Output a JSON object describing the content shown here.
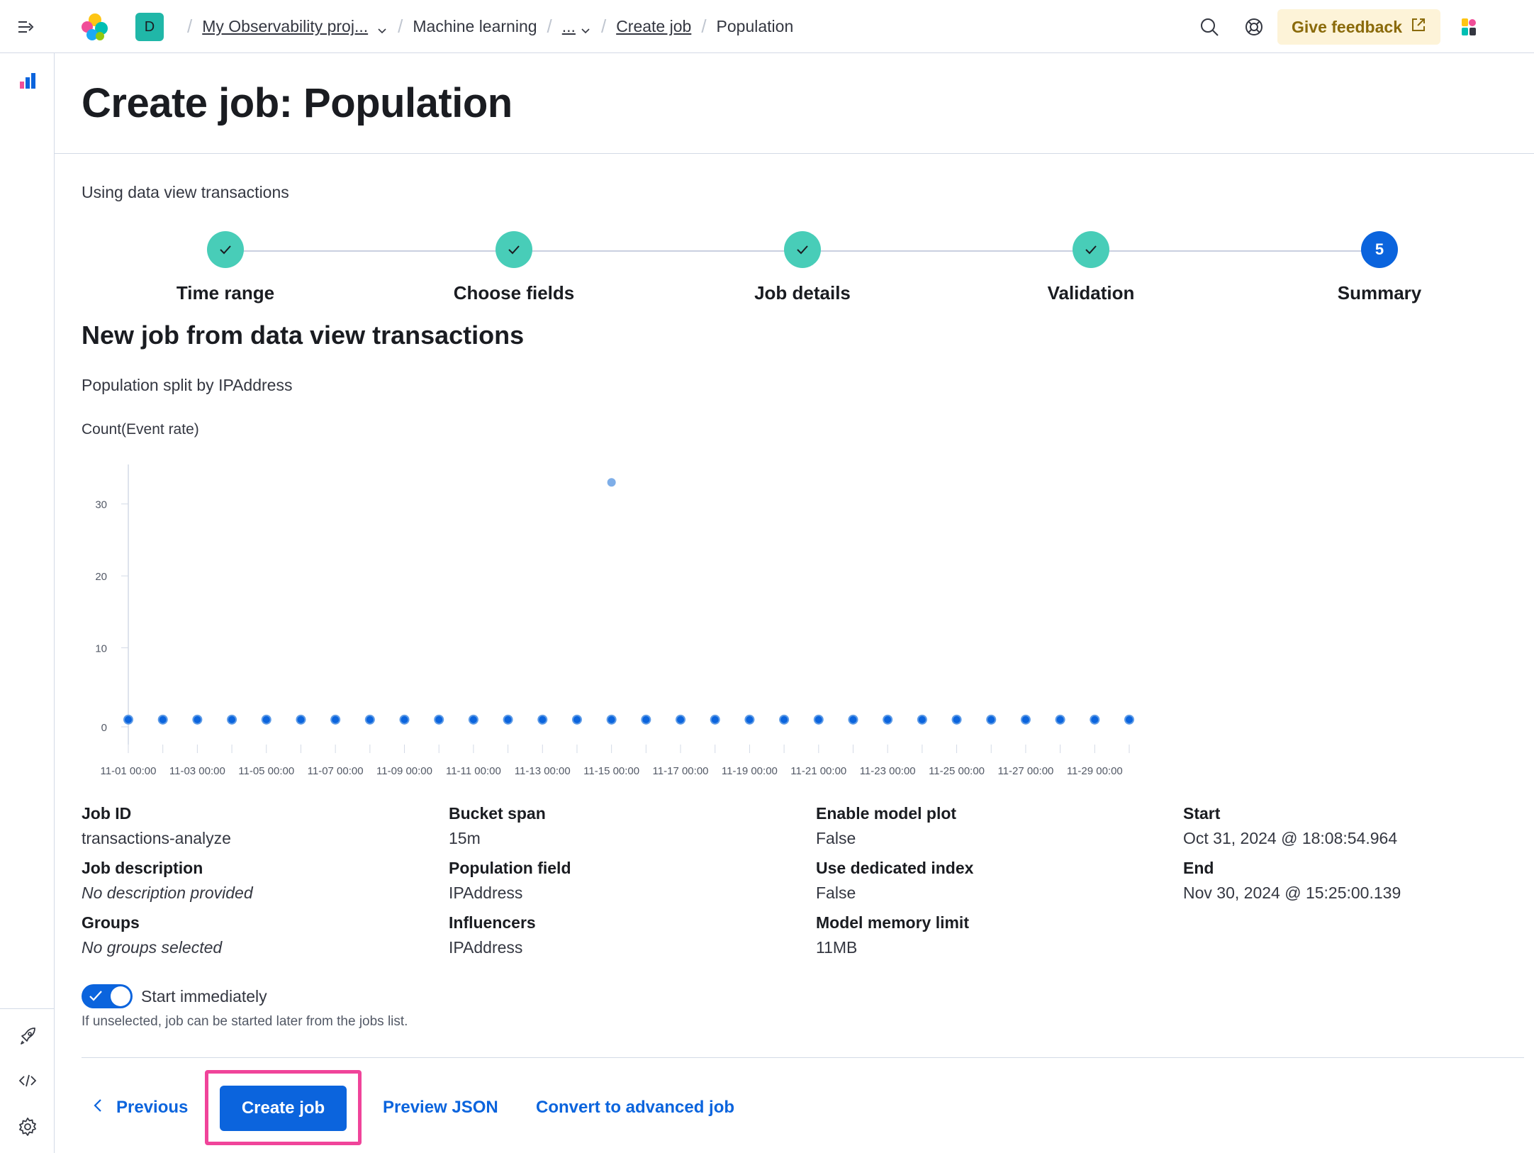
{
  "header": {
    "project_initial": "D",
    "breadcrumbs": {
      "project": "My Observability proj...",
      "ml": "Machine learning",
      "ellipsis": "...",
      "create_job": "Create job",
      "current": "Population"
    },
    "feedback_label": "Give feedback"
  },
  "page": {
    "title": "Create job: Population",
    "subtitle": "Using data view transactions"
  },
  "steps": [
    {
      "label": "Time range",
      "status": "complete"
    },
    {
      "label": "Choose fields",
      "status": "complete"
    },
    {
      "label": "Job details",
      "status": "complete"
    },
    {
      "label": "Validation",
      "status": "complete"
    },
    {
      "label": "Summary",
      "status": "current",
      "number": "5"
    }
  ],
  "summary_section": {
    "title": "New job from data view transactions",
    "split_text": "Population split by IPAddress",
    "chart_title": "Count(Event rate)"
  },
  "chart_data": {
    "type": "scatter",
    "title": "Count(Event rate)",
    "x": [
      "11-01 00:00",
      "11-02 00:00",
      "11-03 00:00",
      "11-04 00:00",
      "11-05 00:00",
      "11-06 00:00",
      "11-07 00:00",
      "11-08 00:00",
      "11-09 00:00",
      "11-10 00:00",
      "11-11 00:00",
      "11-12 00:00",
      "11-13 00:00",
      "11-14 00:00",
      "11-15 00:00",
      "11-16 00:00",
      "11-17 00:00",
      "11-18 00:00",
      "11-19 00:00",
      "11-20 00:00",
      "11-21 00:00",
      "11-22 00:00",
      "11-23 00:00",
      "11-24 00:00",
      "11-25 00:00",
      "11-26 00:00",
      "11-27 00:00",
      "11-28 00:00",
      "11-29 00:00",
      "11-30 00:00"
    ],
    "series": [
      {
        "values": [
          1,
          1,
          1,
          1,
          1,
          1,
          1,
          1,
          1,
          1,
          1,
          1,
          1,
          1,
          1,
          1,
          1,
          1,
          1,
          1,
          1,
          1,
          1,
          1,
          1,
          1,
          1,
          1,
          1,
          1
        ]
      }
    ],
    "highlight_point": {
      "x": "11-15 00:00",
      "y": 33
    },
    "x_tick_labels": [
      "11-01 00:00",
      "11-03 00:00",
      "11-05 00:00",
      "11-07 00:00",
      "11-09 00:00",
      "11-11 00:00",
      "11-13 00:00",
      "11-15 00:00",
      "11-17 00:00",
      "11-19 00:00",
      "11-21 00:00",
      "11-23 00:00",
      "11-25 00:00",
      "11-27 00:00",
      "11-29 00:00"
    ],
    "y_ticks": [
      0,
      10,
      20,
      30
    ],
    "ylim": [
      0,
      35
    ],
    "colors": {
      "point": "#0b64dd",
      "highlight": "#7eaee8",
      "axis": "#d3dae6"
    }
  },
  "summary": {
    "job_id": {
      "label": "Job ID",
      "value": "transactions-analyze"
    },
    "job_description": {
      "label": "Job description",
      "value": "No description provided"
    },
    "groups": {
      "label": "Groups",
      "value": "No groups selected"
    },
    "bucket_span": {
      "label": "Bucket span",
      "value": "15m"
    },
    "population_field": {
      "label": "Population field",
      "value": "IPAddress"
    },
    "influencers": {
      "label": "Influencers",
      "value": "IPAddress"
    },
    "enable_model_plot": {
      "label": "Enable model plot",
      "value": "False"
    },
    "use_dedicated_index": {
      "label": "Use dedicated index",
      "value": "False"
    },
    "model_memory_limit": {
      "label": "Model memory limit",
      "value": "11MB"
    },
    "start": {
      "label": "Start",
      "value": "Oct 31, 2024 @ 18:08:54.964"
    },
    "end": {
      "label": "End",
      "value": "Nov 30, 2024 @ 15:25:00.139"
    }
  },
  "start_immediately": {
    "label": "Start immediately",
    "checked": true,
    "help": "If unselected, job can be started later from the jobs list."
  },
  "actions": {
    "previous": "Previous",
    "create": "Create job",
    "preview_json": "Preview JSON",
    "convert": "Convert to advanced job"
  },
  "colors": {
    "primary": "#0b64dd",
    "step_done": "#48cdb8",
    "highlight_border": "#f0449a",
    "feedback_bg": "#fdf3d8"
  }
}
